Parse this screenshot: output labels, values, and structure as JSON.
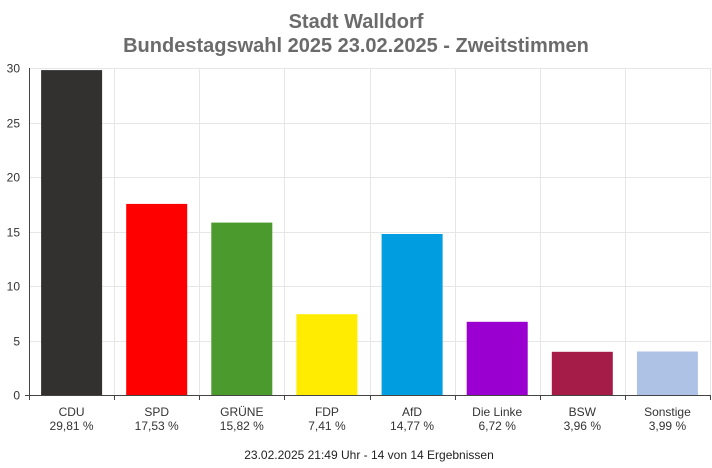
{
  "chart_data": {
    "type": "bar",
    "title": "Stadt Walldorf",
    "subtitle": "Bundestagswahl 2025 23.02.2025  - Zweitstimmen",
    "categories": [
      "CDU",
      "SPD",
      "GRÜNE",
      "FDP",
      "AfD",
      "Die Linke",
      "BSW",
      "Sonstige"
    ],
    "values": [
      29.81,
      17.53,
      15.82,
      7.41,
      14.77,
      6.72,
      3.96,
      3.99
    ],
    "value_labels": [
      "29,81 %",
      "17,53 %",
      "15,82 %",
      "7,41 %",
      "14,77 %",
      "6,72 %",
      "3,96 %",
      "3,99 %"
    ],
    "colors": [
      "#333130",
      "#ff0000",
      "#4a9a2e",
      "#ffec00",
      "#009ee0",
      "#9a00d0",
      "#a51c48",
      "#aec2e6"
    ],
    "ylim": [
      0,
      30
    ],
    "yticks": [
      "0",
      "5",
      "10",
      "15",
      "20",
      "25",
      "30"
    ],
    "grid": true,
    "footer": "23.02.2025 21:49 Uhr - 14 von 14 Ergebnissen"
  }
}
